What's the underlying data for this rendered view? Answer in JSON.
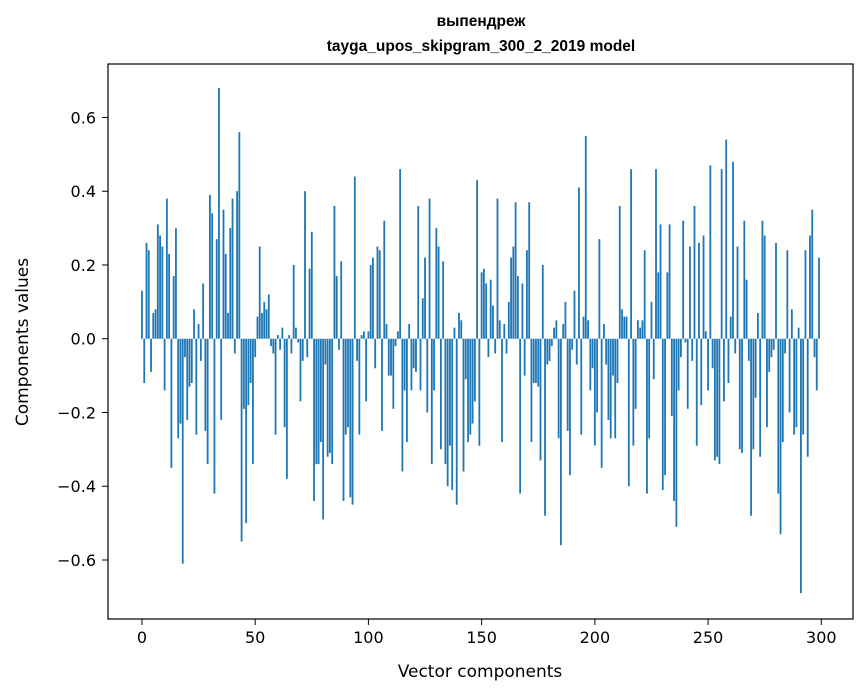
{
  "chart_data": {
    "type": "bar",
    "title": "выпендреж",
    "subtitle": "tayga_upos_skipgram_300_2_2019 model",
    "xlabel": "Vector components",
    "ylabel": "Components values",
    "xlim": [
      -15,
      314
    ],
    "ylim": [
      -0.76,
      0.745
    ],
    "xticks": [
      0,
      50,
      100,
      150,
      200,
      250,
      300
    ],
    "xtick_labels": [
      "0",
      "50",
      "100",
      "150",
      "200",
      "250",
      "300"
    ],
    "yticks": [
      -0.6,
      -0.4,
      -0.2,
      0.0,
      0.2,
      0.4,
      0.6
    ],
    "ytick_labels": [
      "−0.6",
      "−0.4",
      "−0.2",
      "0.0",
      "0.2",
      "0.4",
      "0.6"
    ],
    "grid": false,
    "color": "#1f77b4",
    "values": [
      0.13,
      -0.12,
      0.26,
      0.24,
      -0.09,
      0.07,
      0.08,
      0.31,
      0.28,
      0.25,
      -0.14,
      0.38,
      0.23,
      -0.35,
      0.17,
      0.3,
      -0.27,
      -0.23,
      -0.61,
      -0.05,
      -0.22,
      -0.13,
      -0.12,
      0.08,
      -0.26,
      0.04,
      -0.06,
      0.15,
      -0.25,
      -0.34,
      0.39,
      0.34,
      -0.42,
      0.27,
      0.68,
      -0.22,
      0.35,
      0.23,
      0.07,
      0.3,
      0.38,
      -0.04,
      0.4,
      0.56,
      -0.55,
      -0.19,
      -0.5,
      -0.18,
      -0.12,
      -0.34,
      -0.05,
      0.06,
      0.25,
      0.07,
      0.1,
      0.08,
      0.12,
      -0.02,
      -0.04,
      -0.26,
      0.01,
      -0.03,
      0.03,
      -0.24,
      -0.38,
      0.01,
      -0.04,
      0.2,
      0.03,
      -0.01,
      -0.17,
      -0.06,
      0.4,
      -0.05,
      0.19,
      0.29,
      -0.44,
      -0.34,
      -0.34,
      -0.28,
      -0.49,
      -0.07,
      -0.32,
      -0.31,
      -0.34,
      0.36,
      0.17,
      -0.03,
      0.21,
      -0.44,
      -0.26,
      -0.24,
      -0.43,
      -0.45,
      0.44,
      -0.06,
      -0.26,
      0.01,
      0.02,
      -0.17,
      0.02,
      0.2,
      0.22,
      -0.08,
      0.25,
      0.24,
      -0.25,
      0.32,
      0.04,
      -0.1,
      -0.1,
      -0.19,
      -0.02,
      0.02,
      0.46,
      -0.36,
      -0.14,
      -0.28,
      0.04,
      -0.14,
      -0.08,
      -0.09,
      0.36,
      -0.14,
      0.11,
      0.22,
      -0.2,
      0.38,
      -0.34,
      -0.14,
      0.3,
      0.25,
      -0.3,
      0.21,
      -0.34,
      -0.4,
      -0.29,
      -0.41,
      0.03,
      -0.45,
      0.07,
      0.05,
      -0.36,
      -0.11,
      -0.28,
      -0.26,
      -0.23,
      -0.17,
      0.43,
      -0.29,
      0.18,
      0.19,
      0.15,
      -0.05,
      0.16,
      0.09,
      -0.04,
      0.38,
      0.05,
      -0.28,
      0.04,
      -0.04,
      0.1,
      0.22,
      0.25,
      0.37,
      0.17,
      -0.42,
      0.15,
      -0.1,
      0.24,
      0.37,
      -0.28,
      -0.12,
      -0.12,
      -0.13,
      -0.33,
      0.2,
      -0.48,
      -0.07,
      -0.06,
      -0.02,
      0.03,
      0.05,
      -0.27,
      -0.56,
      0.04,
      0.1,
      -0.25,
      -0.37,
      -0.03,
      0.13,
      -0.07,
      0.41,
      -0.26,
      0.06,
      0.55,
      0.05,
      -0.14,
      -0.08,
      -0.29,
      -0.2,
      0.27,
      -0.35,
      0.04,
      -0.07,
      -0.22,
      -0.27,
      -0.1,
      -0.27,
      -0.12,
      0.36,
      0.08,
      0.06,
      0.06,
      -0.4,
      0.46,
      -0.29,
      -0.19,
      0.05,
      0.03,
      0.05,
      0.24,
      -0.42,
      -0.27,
      0.1,
      -0.11,
      0.46,
      0.18,
      0.31,
      -0.41,
      -0.37,
      0.18,
      0.31,
      -0.21,
      -0.44,
      -0.51,
      -0.14,
      -0.05,
      0.32,
      -0.01,
      -0.19,
      0.25,
      -0.06,
      0.36,
      -0.29,
      0.26,
      -0.18,
      0.28,
      0.02,
      -0.14,
      0.47,
      -0.08,
      -0.33,
      -0.32,
      -0.34,
      0.46,
      -0.17,
      0.54,
      -0.12,
      0.06,
      0.48,
      -0.04,
      0.25,
      -0.3,
      -0.31,
      0.32,
      0.16,
      -0.06,
      -0.48,
      -0.3,
      -0.16,
      0.07,
      -0.32,
      0.32,
      0.28,
      -0.24,
      -0.09,
      -0.05,
      -0.03,
      0.26,
      -0.42,
      -0.53,
      -0.28,
      -0.04,
      0.24,
      -0.2,
      0.08,
      -0.26,
      -0.24,
      0.03,
      -0.69,
      -0.26,
      0.24,
      -0.32,
      0.28,
      0.35,
      -0.05,
      -0.14,
      0.22
    ]
  }
}
